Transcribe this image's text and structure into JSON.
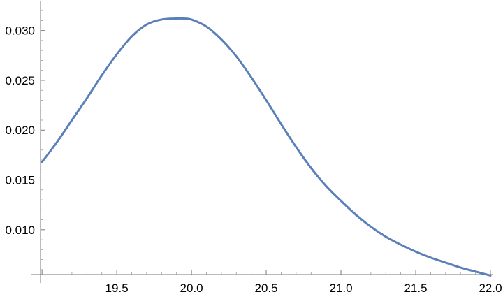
{
  "chart_data": {
    "type": "line",
    "title": "",
    "xlabel": "",
    "ylabel": "",
    "xlim": [
      18.99,
      22.0
    ],
    "ylim": [
      0.0055,
      0.0325
    ],
    "grid": false,
    "x_ticks": [
      19.5,
      20.0,
      20.5,
      21.0,
      21.5,
      22.0
    ],
    "x_tick_labels": [
      "19.5",
      "20.0",
      "20.5",
      "21.0",
      "21.5",
      "22.0"
    ],
    "y_ticks": [
      0.01,
      0.015,
      0.02,
      0.025,
      0.03
    ],
    "y_tick_labels": [
      "0.010",
      "0.015",
      "0.020",
      "0.025",
      "0.030"
    ],
    "colors": {
      "series": "#5b7fb8",
      "axis": "#7a7a7a"
    },
    "series": [
      {
        "x": [
          19.0,
          19.1,
          19.2,
          19.3,
          19.4,
          19.5,
          19.6,
          19.7,
          19.8,
          19.9,
          19.95,
          20.0,
          20.1,
          20.2,
          20.3,
          20.4,
          20.5,
          20.6,
          20.7,
          20.8,
          20.9,
          21.0,
          21.1,
          21.2,
          21.3,
          21.4,
          21.5,
          21.6,
          21.7,
          21.8,
          21.9,
          22.0
        ],
        "y": [
          0.0168,
          0.0188,
          0.021,
          0.0232,
          0.0255,
          0.0276,
          0.0294,
          0.0306,
          0.0311,
          0.0312,
          0.0312,
          0.0311,
          0.0304,
          0.0291,
          0.0274,
          0.0253,
          0.023,
          0.0206,
          0.0183,
          0.0162,
          0.0144,
          0.0129,
          0.0115,
          0.0103,
          0.0093,
          0.0085,
          0.0078,
          0.0072,
          0.0067,
          0.0062,
          0.0058,
          0.0054
        ]
      }
    ]
  }
}
